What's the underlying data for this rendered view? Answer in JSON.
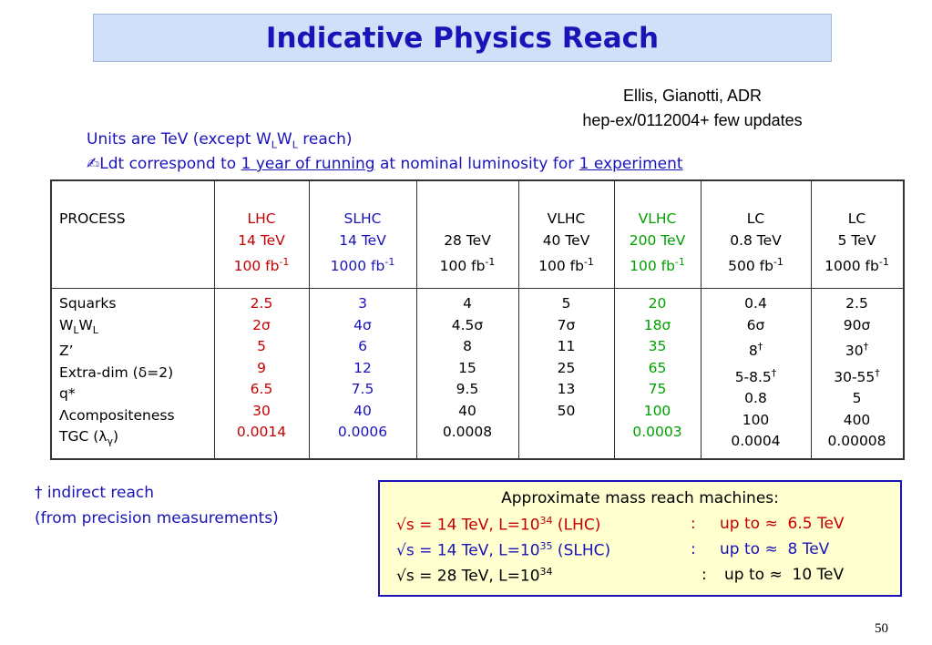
{
  "title": "Indicative Physics Reach",
  "reference": {
    "line1": "Ellis, Gianotti, ADR",
    "line2": "hep-ex/0112004+ few updates"
  },
  "notes": {
    "units_pre": "Units are TeV (except W",
    "units_sub1": "L",
    "units_mid": "W",
    "units_sub2": "L",
    "units_post": " reach)",
    "ldt_icon": "✍",
    "ldt_pre": "Ldt  correspond to ",
    "ldt_u1": "1 year of running",
    "ldt_mid": " at nominal luminosity for ",
    "ldt_u2": "1 experiment"
  },
  "table": {
    "process_header": "PROCESS",
    "columns": [
      {
        "name": "LHC",
        "energy": "14 TeV",
        "lumi": "100 fb",
        "lumi_exp": "-1",
        "color": "#c40000",
        "values": [
          "2.5",
          "2",
          "5",
          "9",
          "6.5",
          "30",
          "0.0014"
        ]
      },
      {
        "name": "SLHC",
        "energy": "14 TeV",
        "lumi": "1000 fb",
        "lumi_exp": "-1",
        "color": "#1a14b8",
        "values": [
          "3",
          "4",
          "6",
          "12",
          "7.5",
          "40",
          "0.0006"
        ]
      },
      {
        "name": "",
        "energy": "28 TeV",
        "lumi": "100 fb",
        "lumi_exp": "-1",
        "color": "#000000",
        "values": [
          "4",
          "4.5",
          "8",
          "15",
          "9.5",
          "40",
          "0.0008"
        ]
      },
      {
        "name": "VLHC",
        "energy": "40 TeV",
        "lumi": "100 fb",
        "lumi_exp": "-1",
        "color": "#000000",
        "values": [
          "5",
          "7",
          "11",
          "25",
          "13",
          "50",
          ""
        ]
      },
      {
        "name": "VLHC",
        "energy": "200 TeV",
        "lumi": "100 fb",
        "lumi_exp": "-1",
        "color": "#00a000",
        "values": [
          "20",
          "18",
          "35",
          "65",
          "75",
          "100",
          "0.0003"
        ]
      },
      {
        "name": "LC",
        "energy": "0.8 TeV",
        "lumi": "500 fb",
        "lumi_exp": "-1",
        "color": "#000000",
        "values": [
          "0.4",
          "6",
          "8",
          "5-8.5",
          "0.8",
          "100",
          "0.0004"
        ]
      },
      {
        "name": "LC",
        "energy": "5 TeV",
        "lumi": "1000 fb",
        "lumi_exp": "-1",
        "color": "#000000",
        "values": [
          "2.5",
          "90",
          "30",
          "30-55",
          "5",
          "400",
          "0.00008"
        ]
      }
    ],
    "processes": {
      "p1": "Squarks",
      "p2a": "W",
      "p2s1": "L",
      "p2b": "W",
      "p2s2": "L",
      "p3": "Z’",
      "p4a": "Extra-dim (",
      "p4g": "δ",
      "p4b": "=2)",
      "p5": "q*",
      "p6g": "Λ",
      "p6": "compositeness",
      "p7a": "TGC (",
      "p7g": "λ",
      "p7s": "γ",
      "p7b": ")"
    },
    "sigma": "σ",
    "dagger": "†"
  },
  "dagger_note": {
    "line1": "† indirect reach",
    "line2": "(from precision measurements)"
  },
  "mass_reach_box": {
    "title": "Approximate mass reach machines:",
    "rows": [
      {
        "sqrt": "√",
        "s_part": "s = 14 TeV,   L=10",
        "exp": "34",
        "machine": " (LHC)",
        "sep": ":",
        "upto": "up to ",
        "approx": "≈",
        "value": "  6.5 TeV",
        "color": "#c40000"
      },
      {
        "sqrt": "√",
        "s_part": "s = 14 TeV,   L=10",
        "exp": "35",
        "machine": " (SLHC)",
        "sep": ":",
        "upto": "up to ",
        "approx": "≈",
        "value": "  8 TeV",
        "color": "#1a14b8"
      },
      {
        "sqrt": "√",
        "s_part": "s = 28 TeV,   L=10",
        "exp": "34",
        "machine": "",
        "sep": ":",
        "upto": "up to ",
        "approx": "≈",
        "value": "  10 TeV",
        "color": "#000000"
      }
    ]
  },
  "page_number": "50"
}
